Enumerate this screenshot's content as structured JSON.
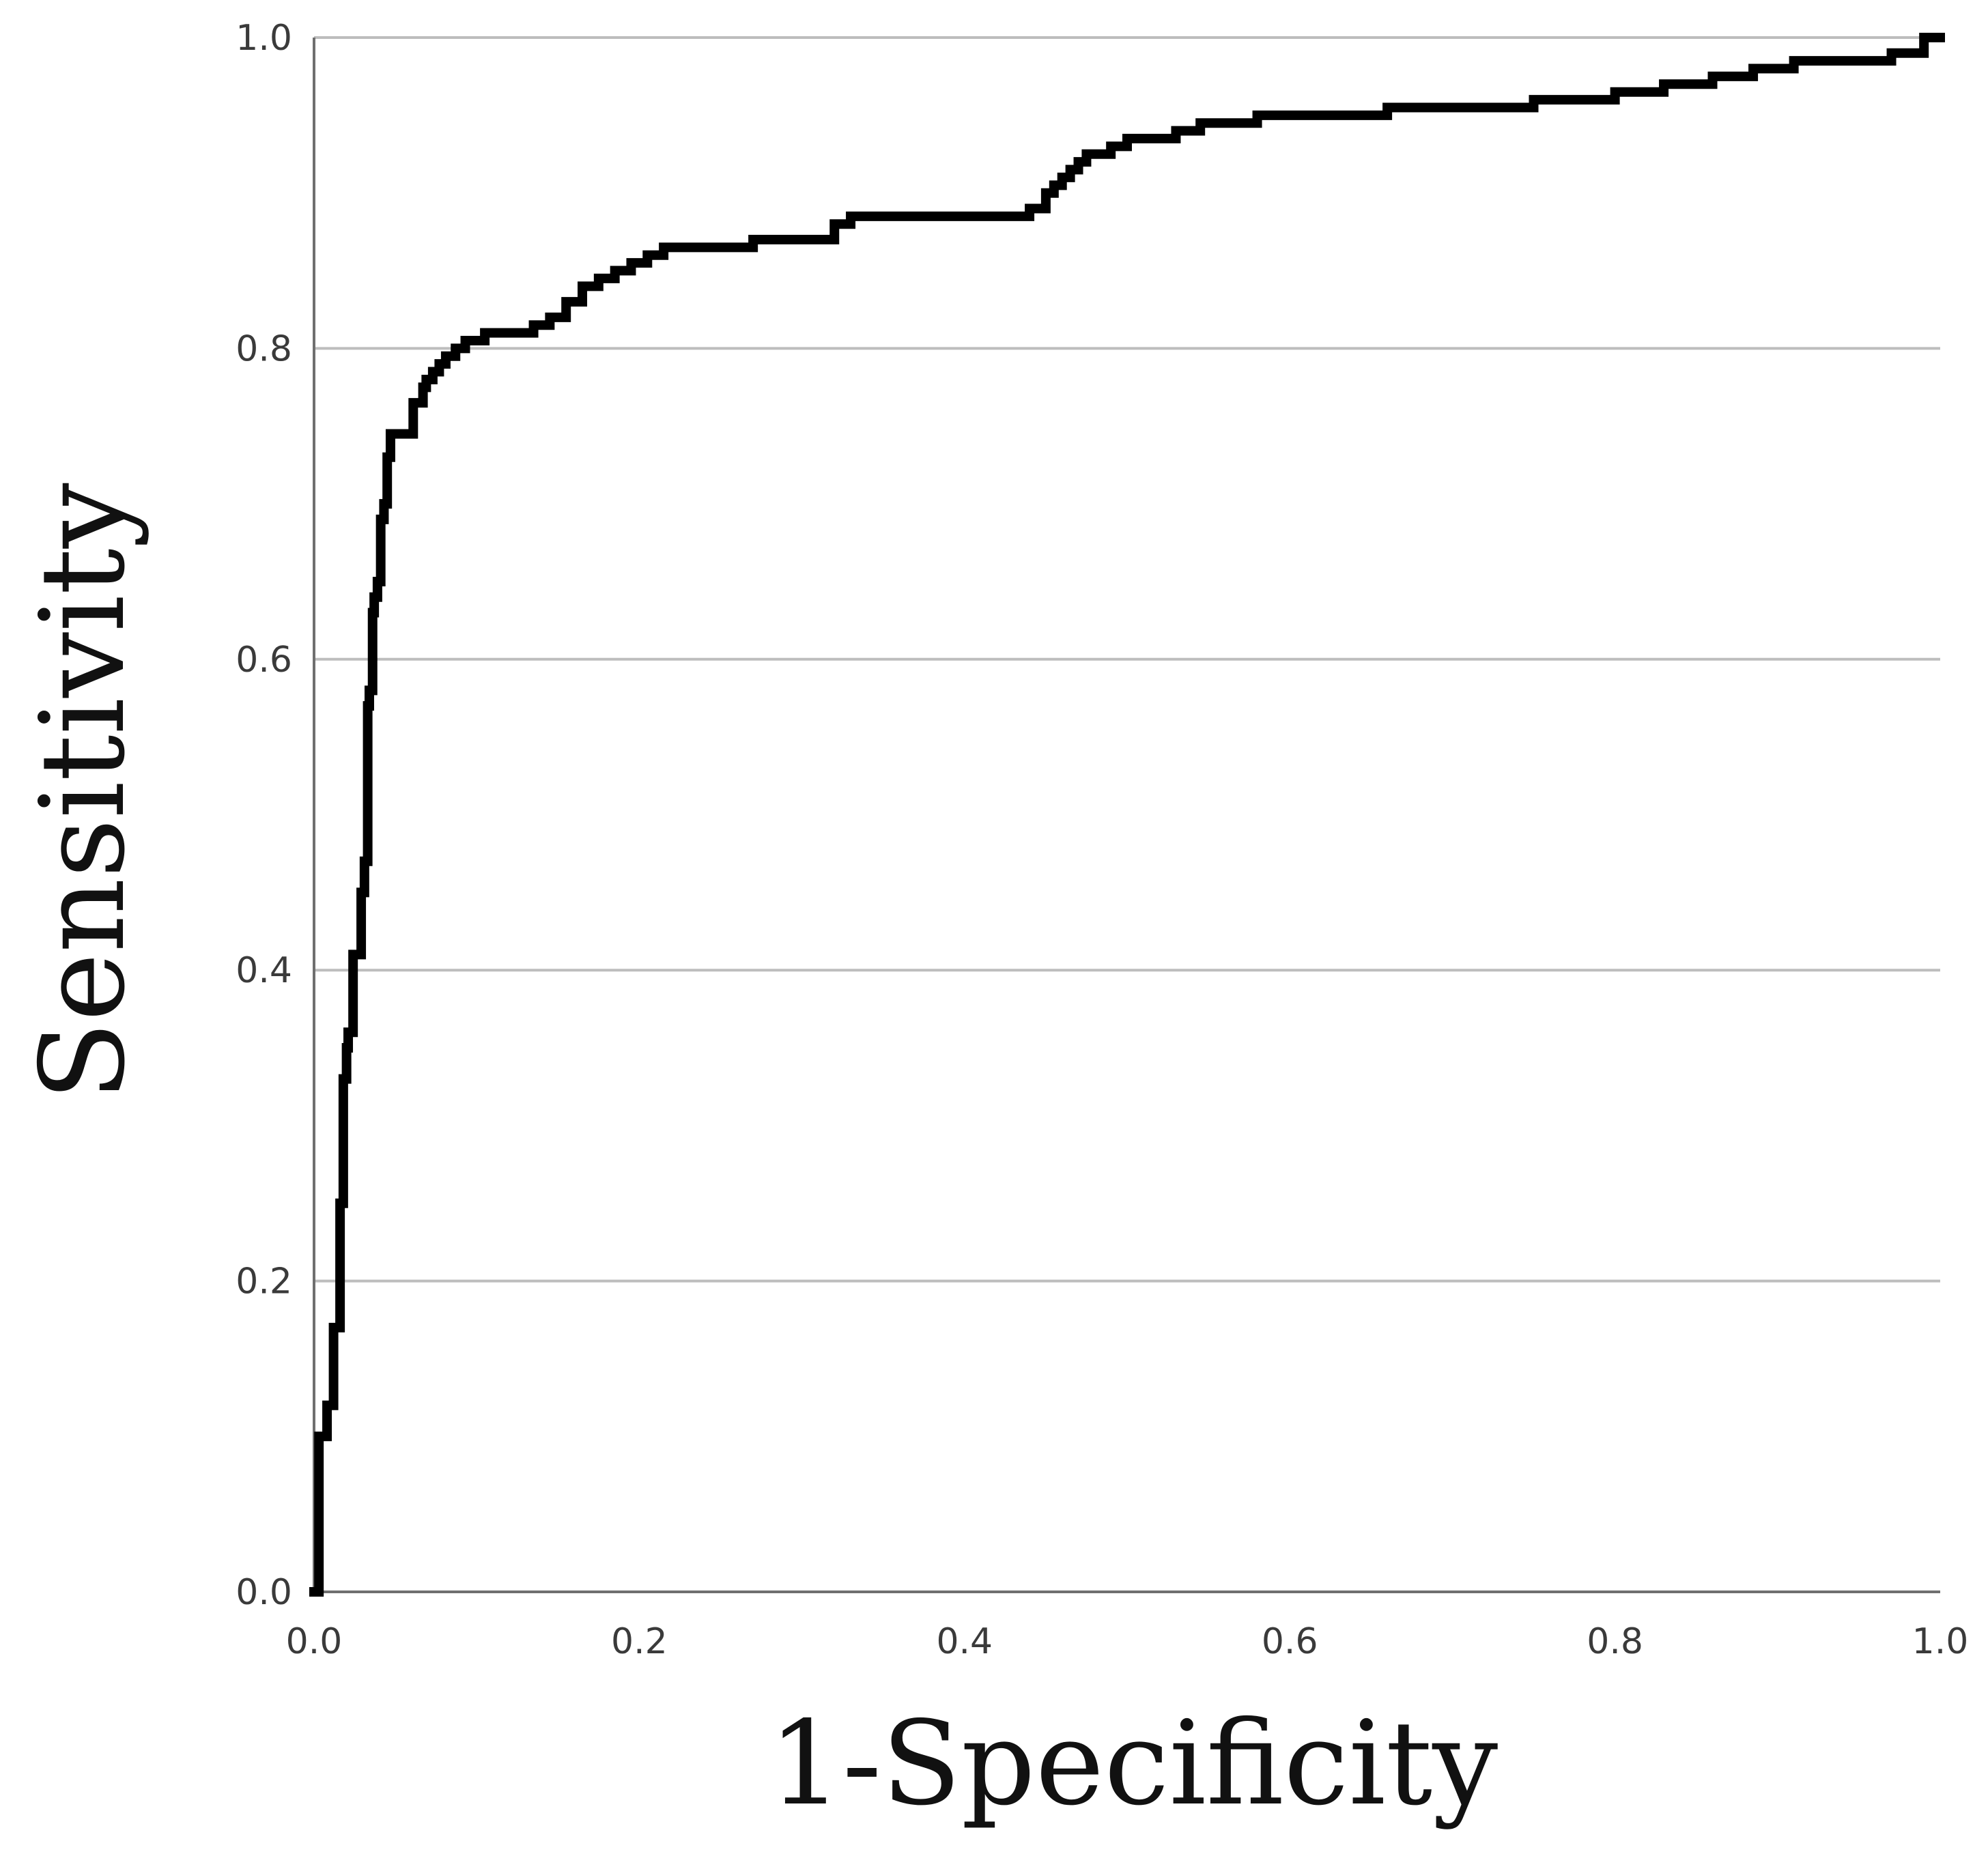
{
  "chart_data": {
    "type": "line",
    "title": "",
    "xlabel": "1-Specificity",
    "ylabel": "Sensitivity",
    "xlim": [
      0,
      1
    ],
    "ylim": [
      0,
      1
    ],
    "x_ticks": [
      "0.0",
      "0.2",
      "0.4",
      "0.6",
      "0.8",
      "1.0"
    ],
    "y_ticks": [
      "0.0",
      "0.2",
      "0.4",
      "0.6",
      "0.8",
      "1.0"
    ],
    "grid": "horizontal",
    "colors": {
      "line": "#000000",
      "grid": "#bdbdbd",
      "axis": "#6f6f6f"
    },
    "series": [
      {
        "x": [
          0,
          0.003,
          0.008,
          0.012,
          0.016,
          0.018,
          0.02,
          0.021,
          0.024,
          0.026,
          0.029,
          0.031,
          0.033,
          0.034,
          0.036,
          0.037,
          0.039,
          0.041,
          0.043,
          0.045,
          0.047,
          0.049,
          0.052,
          0.053,
          0.061,
          0.063,
          0.065,
          0.067,
          0.069,
          0.073,
          0.077,
          0.081,
          0.087,
          0.093,
          0.099,
          0.105,
          0.115,
          0.135,
          0.145,
          0.155,
          0.165,
          0.175,
          0.185,
          0.195,
          0.205,
          0.215,
          0.225,
          0.235,
          0.27,
          0.28,
          0.32,
          0.33,
          0.42,
          0.44,
          0.45,
          0.455,
          0.46,
          0.465,
          0.47,
          0.475,
          0.49,
          0.5,
          0.53,
          0.545,
          0.56,
          0.58,
          0.62,
          0.66,
          0.7,
          0.75,
          0.8,
          0.83,
          0.86,
          0.885,
          0.91,
          0.94,
          0.97,
          0.98,
          0.99,
          1.0
        ],
        "y": [
          0,
          0.1,
          0.12,
          0.17,
          0.25,
          0.33,
          0.35,
          0.36,
          0.41,
          0.41,
          0.45,
          0.47,
          0.57,
          0.58,
          0.63,
          0.64,
          0.65,
          0.69,
          0.7,
          0.73,
          0.745,
          0.745,
          0.745,
          0.745,
          0.765,
          0.765,
          0.765,
          0.775,
          0.78,
          0.785,
          0.79,
          0.795,
          0.8,
          0.805,
          0.805,
          0.81,
          0.81,
          0.815,
          0.82,
          0.83,
          0.84,
          0.845,
          0.85,
          0.855,
          0.86,
          0.865,
          0.865,
          0.865,
          0.87,
          0.87,
          0.88,
          0.885,
          0.885,
          0.89,
          0.9,
          0.905,
          0.91,
          0.915,
          0.92,
          0.925,
          0.93,
          0.935,
          0.94,
          0.945,
          0.945,
          0.95,
          0.95,
          0.955,
          0.955,
          0.96,
          0.965,
          0.97,
          0.975,
          0.98,
          0.985,
          0.985,
          0.99,
          0.99,
          1.0,
          1.0
        ]
      }
    ]
  }
}
